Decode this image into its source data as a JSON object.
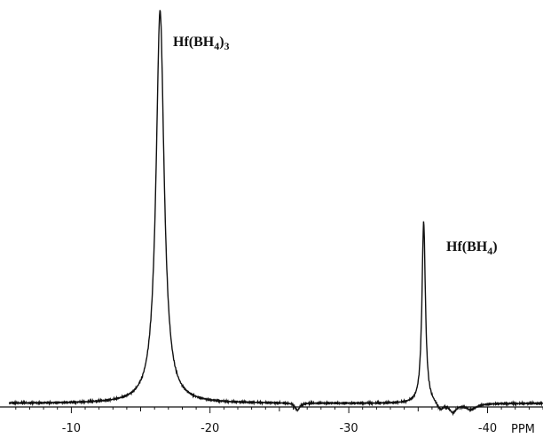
{
  "chart_data": {
    "type": "line",
    "title": "",
    "xlabel": "",
    "ylabel": "",
    "x_unit": "PPM",
    "xlim": [
      -5.5,
      -44
    ],
    "x_reversed": true,
    "ylim": [
      0,
      1.0
    ],
    "grid": false,
    "x_ticks": [
      {
        "value": -10,
        "label": "-10"
      },
      {
        "value": -20,
        "label": "-20"
      },
      {
        "value": -30,
        "label": "-30"
      },
      {
        "value": -40,
        "label": "-40"
      }
    ],
    "minor_tick_step": 1,
    "baseline": 0.03,
    "series": [
      {
        "peaks": [
          {
            "x": -16.4,
            "height": 1.0,
            "width": 0.35
          },
          {
            "x": -26.3,
            "height": 0.012,
            "width": 0.2
          },
          {
            "x": -34.1,
            "height": 0.03,
            "width": 0.15
          },
          {
            "x": -35.4,
            "height": 0.48,
            "width": 0.15
          },
          {
            "x": -36.6,
            "height": 0.012,
            "width": 0.3
          },
          {
            "x": -37.5,
            "height": 0.008,
            "width": 0.3
          },
          {
            "x": -38.8,
            "height": 0.015,
            "width": 0.5
          }
        ]
      }
    ],
    "annotations": [
      {
        "id": "hf3",
        "base": "Hf(BH",
        "sub": "4",
        "tail": ")",
        "sub2": "3",
        "x": -16.4,
        "y": 0.94
      },
      {
        "id": "hf1",
        "base": "Hf(BH",
        "sub": "4",
        "tail": ")",
        "sub2": "",
        "x": -35.4,
        "y": 0.47
      }
    ]
  }
}
